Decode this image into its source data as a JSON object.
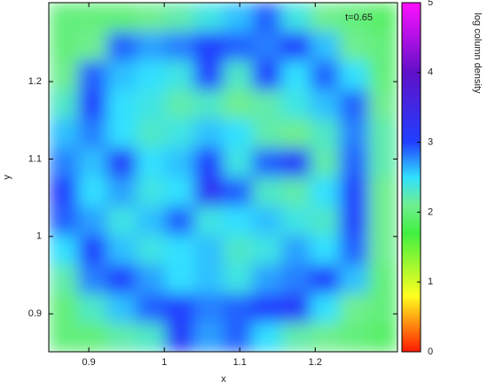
{
  "chart_data": {
    "type": "heatmap",
    "annotation": "t=0.65",
    "xlabel": "x",
    "ylabel": "y",
    "colorbar_label": "log column density",
    "xlim": [
      0.847,
      1.309
    ],
    "ylim": [
      0.851,
      1.302
    ],
    "xticks": [
      0.9,
      1,
      1.1,
      1.2
    ],
    "yticks": [
      0.9,
      1,
      1.1,
      1.2
    ],
    "clim": [
      0,
      5
    ],
    "cticks": [
      0,
      1,
      2,
      3,
      4,
      5
    ],
    "colorscale": [
      {
        "value": 0,
        "color": "#ff1a00"
      },
      {
        "value": 0.8,
        "color": "#ffff20"
      },
      {
        "value": 1.7,
        "color": "#40f040"
      },
      {
        "value": 2.1,
        "color": "#70ee90"
      },
      {
        "value": 2.5,
        "color": "#30e0ff"
      },
      {
        "value": 3,
        "color": "#2040ff"
      },
      {
        "value": 4,
        "color": "#6010c8"
      },
      {
        "value": 5,
        "color": "#ff10ff"
      }
    ],
    "z": [
      [
        2.0,
        2.0,
        2.0,
        2.1,
        2.2,
        2.4,
        2.6,
        2.9,
        2.4,
        2.1,
        2.0,
        1.9
      ],
      [
        2.0,
        2.1,
        2.9,
        2.7,
        2.8,
        3.0,
        2.9,
        2.8,
        3.0,
        2.6,
        2.1,
        2.0
      ],
      [
        2.1,
        2.9,
        2.6,
        2.5,
        2.4,
        3.0,
        2.3,
        3.0,
        2.5,
        2.9,
        2.5,
        2.0
      ],
      [
        2.3,
        3.0,
        2.5,
        2.4,
        2.2,
        2.3,
        2.1,
        2.2,
        2.4,
        2.6,
        2.9,
        2.1
      ],
      [
        2.6,
        2.8,
        2.5,
        2.3,
        2.4,
        2.6,
        2.5,
        2.2,
        2.1,
        2.3,
        2.8,
        2.2
      ],
      [
        2.8,
        2.6,
        3.1,
        2.5,
        2.6,
        3.0,
        2.4,
        2.9,
        3.1,
        2.2,
        2.9,
        2.2
      ],
      [
        3.0,
        2.5,
        2.7,
        2.4,
        2.5,
        3.2,
        2.9,
        2.3,
        2.2,
        2.5,
        3.0,
        2.1
      ],
      [
        2.9,
        2.7,
        2.4,
        2.6,
        2.9,
        2.4,
        2.5,
        2.6,
        2.4,
        2.3,
        3.0,
        2.1
      ],
      [
        2.5,
        3.0,
        2.6,
        2.4,
        2.5,
        2.6,
        2.3,
        2.4,
        2.7,
        2.5,
        2.9,
        2.1
      ],
      [
        2.2,
        2.8,
        3.0,
        2.7,
        2.5,
        2.6,
        2.4,
        2.7,
        2.8,
        3.0,
        2.6,
        2.0
      ],
      [
        2.0,
        2.3,
        2.6,
        2.9,
        3.0,
        2.8,
        2.9,
        3.0,
        3.1,
        2.5,
        2.1,
        2.0
      ],
      [
        2.0,
        2.0,
        2.2,
        2.3,
        3.1,
        2.7,
        2.9,
        2.5,
        2.2,
        2.1,
        2.0,
        1.9
      ]
    ]
  }
}
